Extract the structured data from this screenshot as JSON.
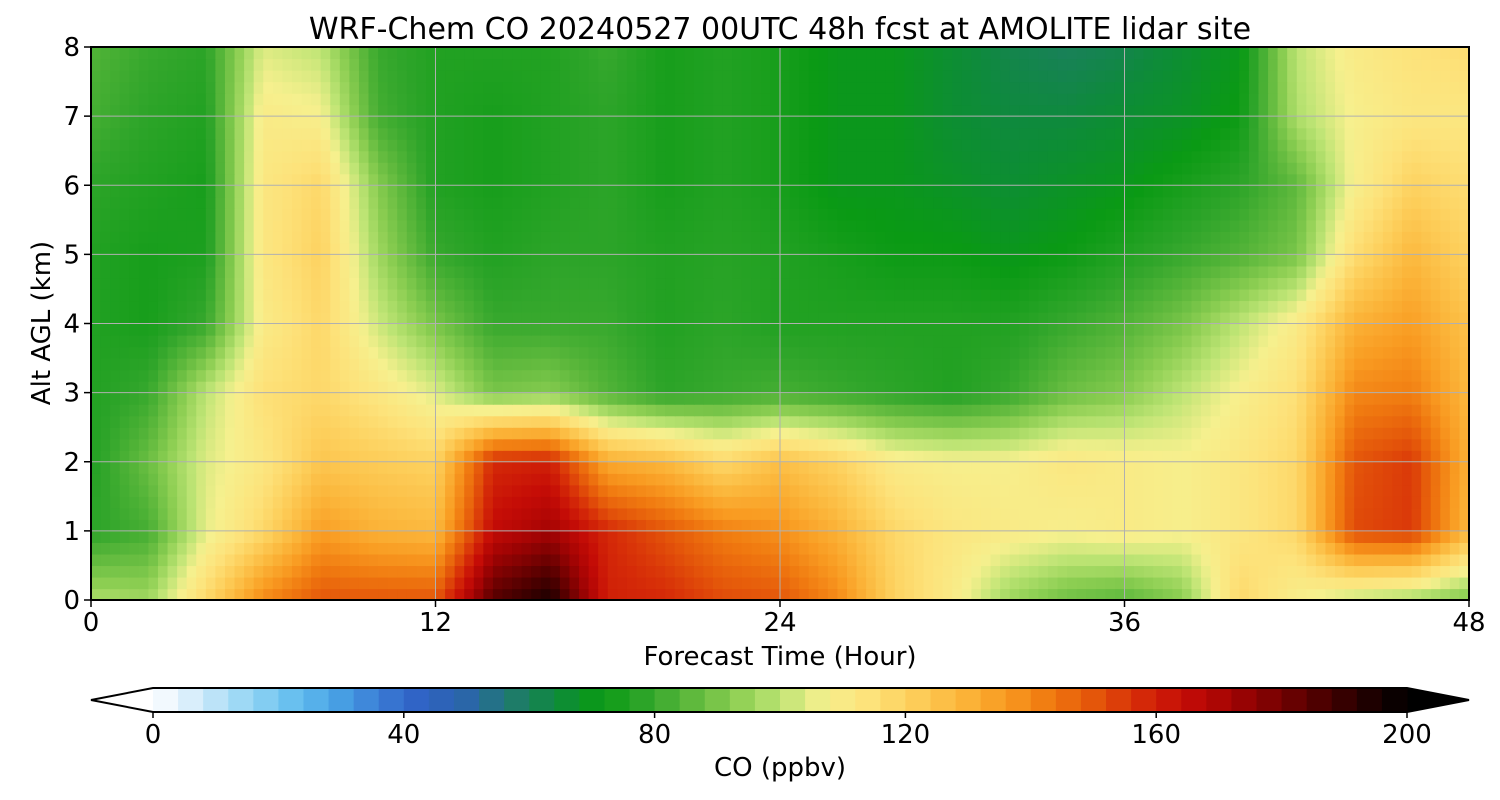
{
  "chart_data": {
    "type": "heatmap",
    "title": "WRF-Chem CO  20240527 00UTC 48h fcst at AMOLITE lidar site",
    "xlabel": "Forecast Time (Hour)",
    "ylabel": "Alt AGL (km)",
    "xlim": [
      0,
      48
    ],
    "ylim": [
      0,
      8
    ],
    "x_ticks": [
      0,
      12,
      24,
      36,
      48
    ],
    "y_ticks": [
      0,
      1,
      2,
      3,
      4,
      5,
      6,
      7,
      8
    ],
    "grid": true,
    "x_hours": [
      0,
      2,
      4,
      6,
      8,
      10,
      12,
      14,
      16,
      18,
      20,
      22,
      24,
      26,
      28,
      30,
      32,
      34,
      36,
      38,
      40,
      42,
      44,
      46,
      48
    ],
    "y_km": [
      0,
      1,
      2,
      3,
      4,
      5,
      6,
      7,
      8
    ],
    "values_ppbv": [
      [
        98,
        96,
        118,
        140,
        150,
        150,
        150,
        185,
        195,
        160,
        158,
        152,
        150,
        140,
        120,
        110,
        95,
        88,
        85,
        92,
        118,
        108,
        100,
        96,
        90
      ],
      [
        78,
        82,
        105,
        118,
        135,
        130,
        128,
        165,
        172,
        158,
        150,
        142,
        138,
        130,
        118,
        112,
        110,
        108,
        110,
        108,
        112,
        118,
        152,
        155,
        128
      ],
      [
        76,
        88,
        104,
        112,
        124,
        122,
        120,
        158,
        160,
        132,
        128,
        118,
        126,
        120,
        110,
        108,
        108,
        112,
        110,
        108,
        112,
        118,
        150,
        155,
        130
      ],
      [
        76,
        80,
        100,
        115,
        118,
        112,
        104,
        90,
        92,
        84,
        78,
        80,
        82,
        80,
        78,
        76,
        80,
        88,
        92,
        100,
        108,
        115,
        140,
        142,
        128
      ],
      [
        76,
        74,
        80,
        110,
        118,
        102,
        90,
        80,
        80,
        80,
        76,
        78,
        76,
        76,
        76,
        76,
        76,
        80,
        84,
        90,
        100,
        110,
        130,
        135,
        125
      ],
      [
        76,
        74,
        75,
        112,
        120,
        96,
        80,
        76,
        78,
        78,
        76,
        77,
        76,
        74,
        72,
        72,
        70,
        72,
        76,
        80,
        84,
        90,
        116,
        128,
        120
      ],
      [
        78,
        76,
        74,
        112,
        118,
        92,
        76,
        74,
        76,
        78,
        74,
        76,
        74,
        70,
        70,
        68,
        66,
        68,
        70,
        74,
        78,
        86,
        108,
        120,
        116
      ],
      [
        82,
        78,
        76,
        110,
        108,
        82,
        76,
        74,
        76,
        78,
        74,
        76,
        74,
        70,
        70,
        66,
        64,
        64,
        66,
        68,
        72,
        98,
        108,
        112,
        112
      ],
      [
        84,
        80,
        78,
        104,
        100,
        80,
        76,
        76,
        76,
        80,
        74,
        76,
        74,
        70,
        70,
        66,
        62,
        60,
        62,
        66,
        70,
        100,
        110,
        114,
        116
      ]
    ],
    "colorbar": {
      "label": "CO  (ppbv)",
      "min": 0,
      "max": 200,
      "ticks": [
        0,
        40,
        80,
        120,
        160,
        200
      ],
      "extend": "both",
      "colors": [
        "#ffffff",
        "#d2ebfa",
        "#9cd8f5",
        "#6cc2f0",
        "#4aa6e6",
        "#3b7ed6",
        "#2f60c4",
        "#2a66a8",
        "#207a6e",
        "#0e8a3c",
        "#0a9a14",
        "#2fa52a",
        "#5db83c",
        "#8cce52",
        "#bde474",
        "#f6f08e",
        "#fde27a",
        "#fdce5a",
        "#fbb73c",
        "#f99c22",
        "#f07a10",
        "#e4560a",
        "#d62c08",
        "#c50c06",
        "#a60404",
        "#7c0202",
        "#500000",
        "#240000",
        "#000000"
      ]
    }
  }
}
